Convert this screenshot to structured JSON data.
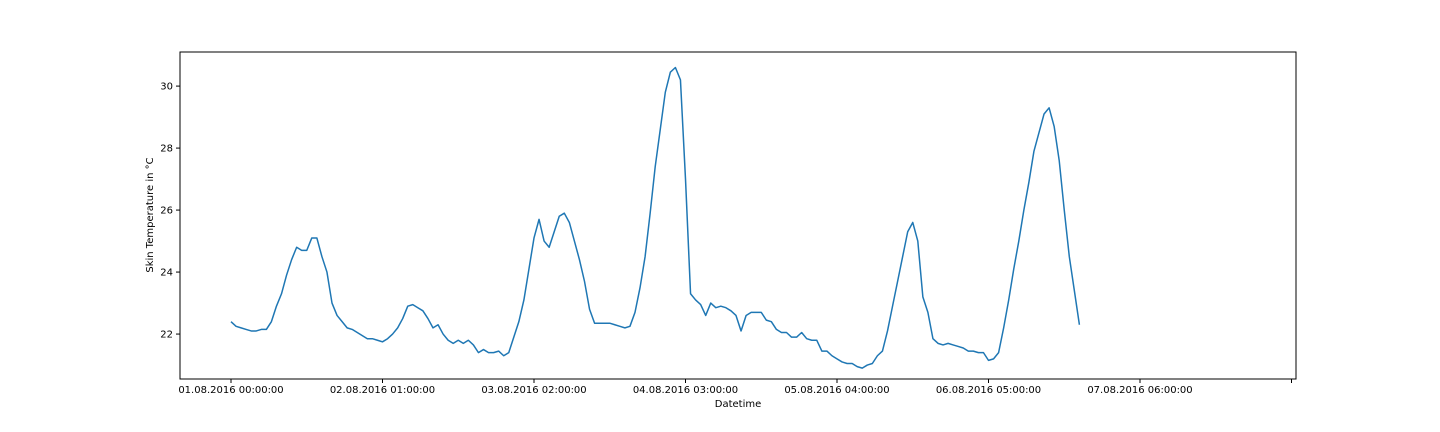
{
  "chart_data": {
    "type": "line",
    "title": "",
    "xlabel": "Datetime",
    "ylabel": "Skin Temperature in °C",
    "x_tick_labels": [
      "01.08.2016 00:00:00",
      "02.08.2016 01:00:00",
      "03.08.2016 02:00:00",
      "04.08.2016 03:00:00",
      "05.08.2016 04:00:00",
      "06.08.2016 05:00:00",
      "07.08.2016 06:00:00",
      ""
    ],
    "y_ticks": [
      22,
      24,
      26,
      28,
      30
    ],
    "ylim": [
      20.55,
      31.1
    ],
    "grid": false,
    "line_color": "#1f77b4",
    "series": [
      {
        "values": [
          22.4,
          22.25,
          22.2,
          22.15,
          22.1,
          22.1,
          22.15,
          22.15,
          22.4,
          22.9,
          23.3,
          23.9,
          24.4,
          24.8,
          24.7,
          24.7,
          25.1,
          25.1,
          24.5,
          24.0,
          23.0,
          22.6,
          22.4,
          22.2,
          22.15,
          22.05,
          21.95,
          21.85,
          21.85,
          21.8,
          21.75,
          21.85,
          22.0,
          22.2,
          22.5,
          22.9,
          22.95,
          22.85,
          22.75,
          22.5,
          22.2,
          22.3,
          22.0,
          21.8,
          21.7,
          21.8,
          21.7,
          21.8,
          21.65,
          21.4,
          21.5,
          21.4,
          21.4,
          21.45,
          21.3,
          21.4,
          21.9,
          22.4,
          23.1,
          24.1,
          25.1,
          25.7,
          25.0,
          24.8,
          25.3,
          25.8,
          25.9,
          25.6,
          25.0,
          24.4,
          23.7,
          22.8,
          22.35,
          22.35,
          22.35,
          22.35,
          22.3,
          22.25,
          22.2,
          22.25,
          22.7,
          23.5,
          24.5,
          25.9,
          27.4,
          28.6,
          29.8,
          30.45,
          30.6,
          30.2,
          27.0,
          23.3,
          23.1,
          22.95,
          22.6,
          23.0,
          22.85,
          22.9,
          22.85,
          22.75,
          22.6,
          22.1,
          22.6,
          22.7,
          22.7,
          22.7,
          22.45,
          22.4,
          22.15,
          22.05,
          22.05,
          21.9,
          21.9,
          22.05,
          21.85,
          21.8,
          21.8,
          21.45,
          21.45,
          21.3,
          21.2,
          21.1,
          21.05,
          21.05,
          20.95,
          20.9,
          21.0,
          21.05,
          21.3,
          21.45,
          22.1,
          22.9,
          23.7,
          24.5,
          25.3,
          25.6,
          25.0,
          23.2,
          22.7,
          21.85,
          21.7,
          21.65,
          21.7,
          21.65,
          21.6,
          21.55,
          21.45,
          21.45,
          21.4,
          21.4,
          21.15,
          21.2,
          21.4,
          22.2,
          23.1,
          24.1,
          25.0,
          26.0,
          26.9,
          27.9,
          28.5,
          29.1,
          29.3,
          28.7,
          27.6,
          26.0,
          24.5,
          23.4,
          22.3
        ]
      }
    ]
  }
}
